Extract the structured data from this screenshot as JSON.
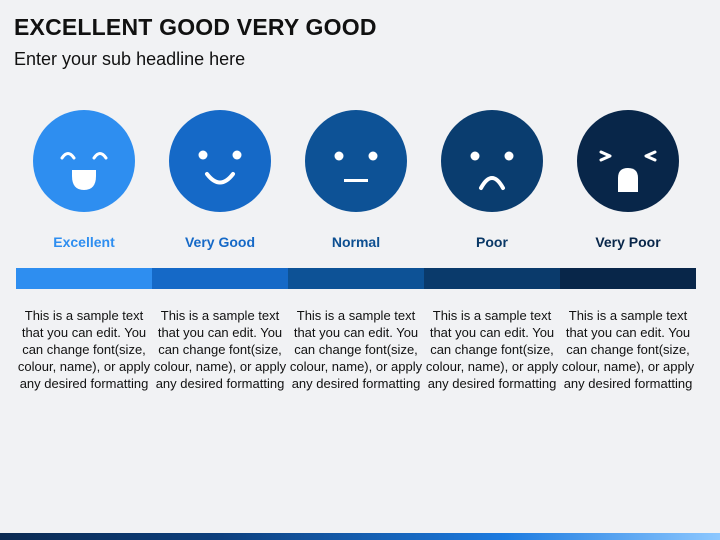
{
  "header": {
    "title": "EXCELLENT GOOD VERY GOOD",
    "subtitle": "Enter your sub headline here"
  },
  "ratings": [
    {
      "label": "Excellent",
      "face": "laughing-face-icon",
      "color": "#2e8ef0",
      "label_color": "#2e8ef0",
      "bar_color": "#2e8ef0",
      "description": "This is a sample text that you can edit. You can change font(size, colour, name), or apply any desired formatting"
    },
    {
      "label": "Very Good",
      "face": "smiling-face-icon",
      "color": "#1569c7",
      "label_color": "#1569c7",
      "bar_color": "#1569c7",
      "description": "This is a sample text that you can edit. You can change font(size, colour, name), or apply any desired formatting"
    },
    {
      "label": "Normal",
      "face": "neutral-face-icon",
      "color": "#0d5296",
      "label_color": "#0d4f91",
      "bar_color": "#0d5296",
      "description": "This is a sample text that you can edit. You can change font(size, colour, name), or apply any desired formatting"
    },
    {
      "label": "Poor",
      "face": "sad-face-icon",
      "color": "#0a3d6f",
      "label_color": "#0a3866",
      "bar_color": "#0a3a6b",
      "description": "This is a sample text that you can edit. You can change font(size, colour, name), or apply any desired formatting"
    },
    {
      "label": "Very Poor",
      "face": "crying-face-icon",
      "color": "#082649",
      "label_color": "#082649",
      "bar_color": "#082649",
      "description": "This is a sample text that you can edit. You can change font(size, colour, name), or apply any desired formatting"
    }
  ]
}
